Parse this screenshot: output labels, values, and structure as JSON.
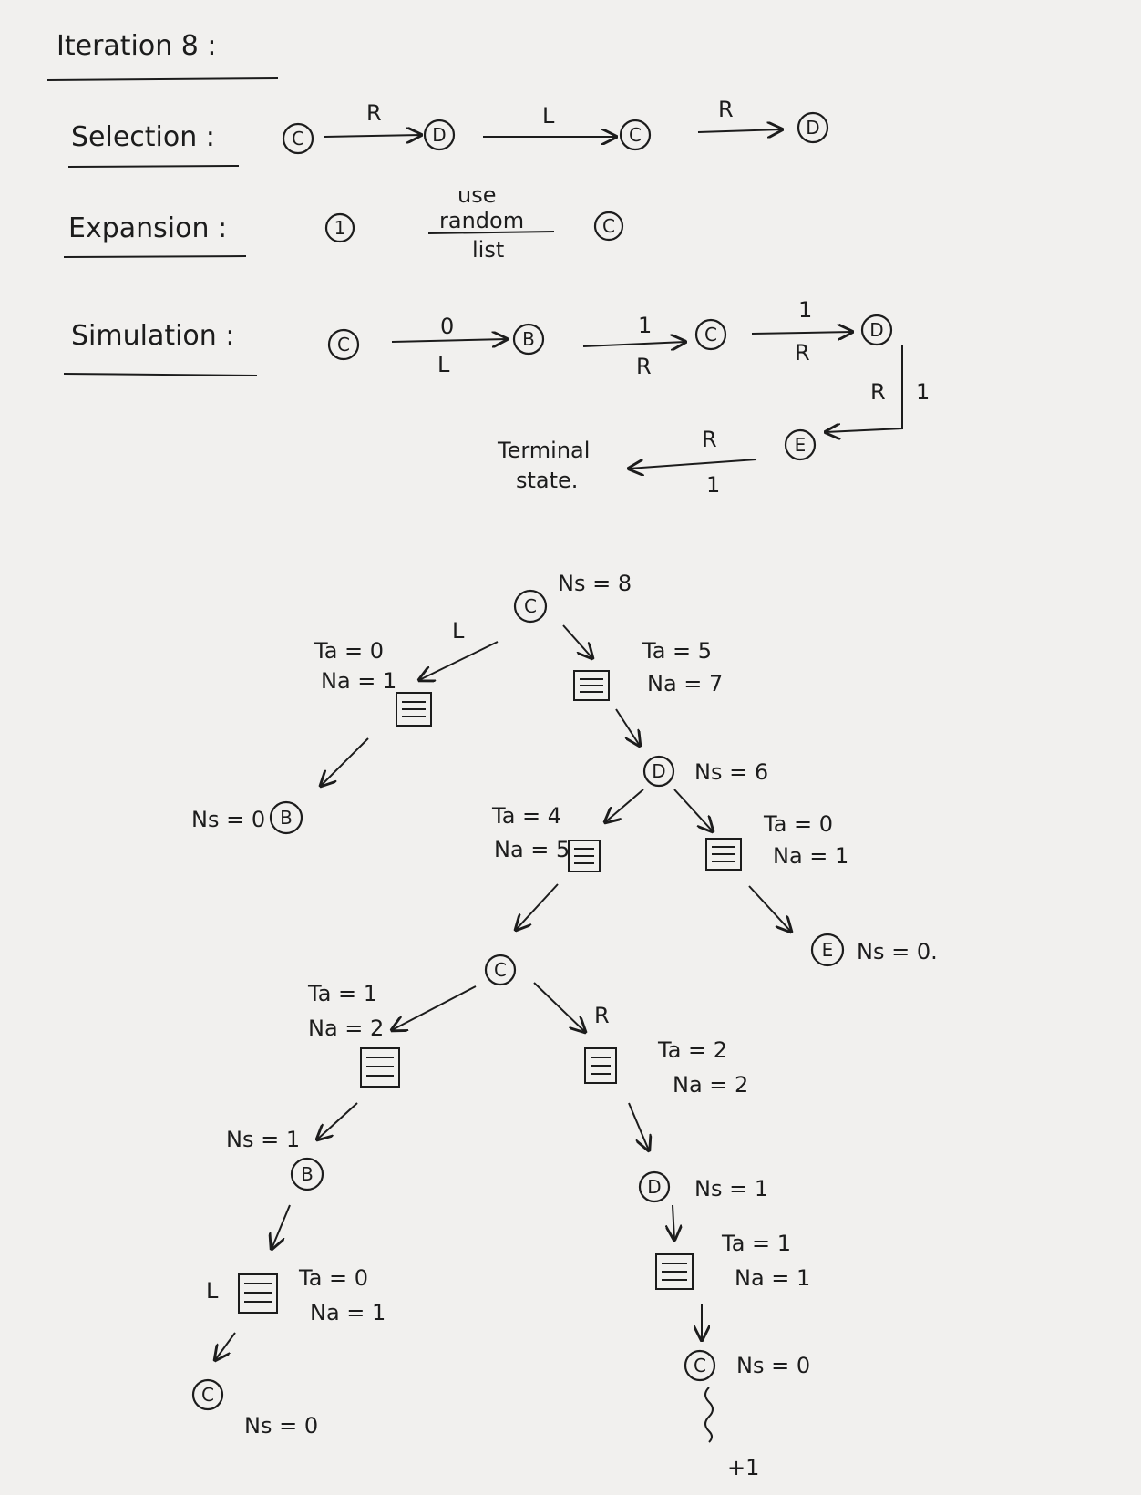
{
  "header": {
    "title": "Iteration 8 :",
    "selection_label": "Selection :",
    "expansion_label": "Expansion :",
    "simulation_label": "Simulation :"
  },
  "selection": {
    "nodes": [
      "C",
      "D",
      "C",
      "D"
    ],
    "edges": [
      "R",
      "L",
      "R"
    ]
  },
  "expansion": {
    "node1": "1",
    "note_line1": "use",
    "note_line2": "random",
    "note_line3": "list",
    "node2": "C"
  },
  "simulation": {
    "nodes": [
      "C",
      "B",
      "C",
      "D",
      "E"
    ],
    "edge_top": [
      "0",
      "1",
      "1",
      "1",
      "1"
    ],
    "edge_bottom": [
      "L",
      "R",
      "R",
      "R",
      "R"
    ],
    "terminal_line1": "Terminal",
    "terminal_line2": "state."
  },
  "tree": {
    "root": {
      "letter": "C",
      "ns": "Ns = 8"
    },
    "root_left_label": "L",
    "a1": {
      "ta": "Ta = 0",
      "na": "Na = 1"
    },
    "b1": {
      "letter": "B",
      "ns": "Ns = 0"
    },
    "a2": {
      "ta": "Ta = 5",
      "na": "Na = 7"
    },
    "d1": {
      "letter": "D",
      "ns": "Ns = 6"
    },
    "a3": {
      "ta": "Ta = 4",
      "na": "Na = 5"
    },
    "a4": {
      "ta": "Ta = 0",
      "na": "Na = 1"
    },
    "e1": {
      "letter": "E",
      "ns": "Ns = 0."
    },
    "c2": {
      "letter": "C"
    },
    "a5": {
      "ta": "Ta = 1",
      "na": "Na = 2"
    },
    "a6_label": "R",
    "a6": {
      "ta": "Ta = 2",
      "na": "Na = 2"
    },
    "b2": {
      "letter": "B",
      "ns": "Ns = 1"
    },
    "a7_label": "L",
    "a7": {
      "ta": "Ta = 0",
      "na": "Na = 1"
    },
    "c3": {
      "letter": "C",
      "ns": "Ns = 0"
    },
    "d2": {
      "letter": "D",
      "ns": "Ns = 1"
    },
    "a8": {
      "ta": "Ta = 1",
      "na": "Na = 1"
    },
    "c4": {
      "letter": "C",
      "ns": "Ns = 0"
    },
    "reward": "+1"
  }
}
